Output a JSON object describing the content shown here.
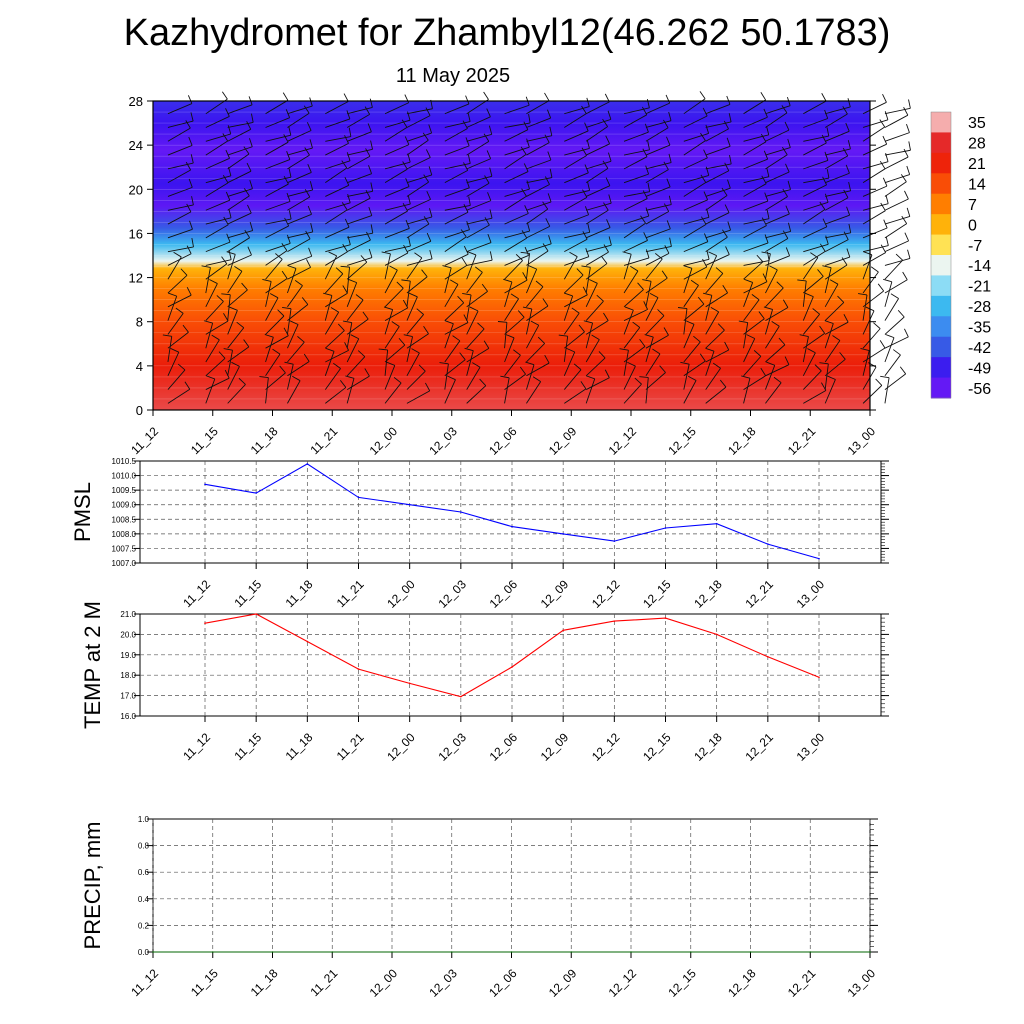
{
  "title": "Kazhydromet for Zhambyl12(46.262 50.1783)",
  "date": "11 May 2025",
  "colorbar": {
    "labels": [
      "35",
      "28",
      "21",
      "14",
      "7",
      "0",
      "-7",
      "-14",
      "-21",
      "-28",
      "-35",
      "-42",
      "-49",
      "-56"
    ]
  },
  "chart_data": [
    {
      "type": "heatmap",
      "name": "time-height cross section with wind barbs",
      "x": [
        "11_12",
        "11_15",
        "11_18",
        "11_21",
        "12_00",
        "12_03",
        "12_06",
        "12_09",
        "12_12",
        "12_15",
        "12_18",
        "12_21",
        "13_00"
      ],
      "ylabel": "",
      "yticks": [
        "0",
        "4",
        "8",
        "12",
        "16",
        "20",
        "24",
        "28"
      ],
      "ylim": [
        0,
        28
      ],
      "color_scale": {
        "min": -56,
        "max": 35,
        "steps": [
          35,
          28,
          21,
          14,
          7,
          0,
          -7,
          -14,
          -21,
          -28,
          -35,
          -42,
          -49,
          -56
        ]
      },
      "profile": [
        {
          "level": 0,
          "value": 30
        },
        {
          "level": 4,
          "value": 22
        },
        {
          "level": 8,
          "value": 14
        },
        {
          "level": 11,
          "value": 7
        },
        {
          "level": 12.8,
          "value": 0
        },
        {
          "level": 13.5,
          "value": -14
        },
        {
          "level": 15,
          "value": -28
        },
        {
          "level": 16.5,
          "value": -42
        },
        {
          "level": 18.5,
          "value": -55
        },
        {
          "level": 20.5,
          "value": -50
        },
        {
          "level": 23.5,
          "value": -56
        },
        {
          "level": 26,
          "value": -50
        },
        {
          "level": 28,
          "value": -47
        }
      ]
    },
    {
      "type": "line",
      "ylabel": "PMSL",
      "x": [
        "11_12",
        "11_15",
        "11_18",
        "11_21",
        "12_00",
        "12_03",
        "12_06",
        "12_09",
        "12_12",
        "12_15",
        "12_18",
        "12_21",
        "13_00"
      ],
      "yticks": [
        "1007.0",
        "1007.5",
        "1008.0",
        "1008.5",
        "1009.0",
        "1009.5",
        "1010.0",
        "1010.5"
      ],
      "ylim": [
        1007.0,
        1010.5
      ],
      "grid": true,
      "series": [
        {
          "color": "#0000ff",
          "values": [
            1009.7,
            1009.4,
            1010.4,
            1009.25,
            1009.0,
            1008.75,
            1008.25,
            1008.0,
            1007.75,
            1008.2,
            1008.35,
            1007.65,
            1007.15
          ]
        }
      ]
    },
    {
      "type": "line",
      "ylabel": "TEMP at 2 M",
      "x": [
        "11_12",
        "11_15",
        "11_18",
        "11_21",
        "12_00",
        "12_03",
        "12_06",
        "12_09",
        "12_12",
        "12_15",
        "12_18",
        "12_21",
        "13_00"
      ],
      "yticks": [
        "16.0",
        "17.0",
        "18.0",
        "19.0",
        "20.0",
        "21.0"
      ],
      "ylim": [
        16.0,
        21.0
      ],
      "grid": true,
      "series": [
        {
          "color": "#ff0000",
          "values": [
            20.55,
            21.0,
            19.65,
            18.3,
            17.6,
            16.95,
            18.4,
            20.2,
            20.65,
            20.8,
            20.0,
            18.9,
            17.9
          ]
        }
      ]
    },
    {
      "type": "line",
      "ylabel": "PRECIP, mm",
      "x": [
        "11_12",
        "11_15",
        "11_18",
        "11_21",
        "12_00",
        "12_03",
        "12_06",
        "12_09",
        "12_12",
        "12_15",
        "12_18",
        "12_21",
        "13_00"
      ],
      "yticks": [
        "0.0",
        "0.2",
        "0.4",
        "0.6",
        "0.8",
        "1.0"
      ],
      "ylim": [
        0.0,
        1.0
      ],
      "grid": true,
      "series": [
        {
          "color": "#006400",
          "values": [
            0,
            0,
            0,
            0,
            0,
            0,
            0,
            0,
            0,
            0,
            0,
            0,
            0
          ]
        }
      ]
    }
  ]
}
